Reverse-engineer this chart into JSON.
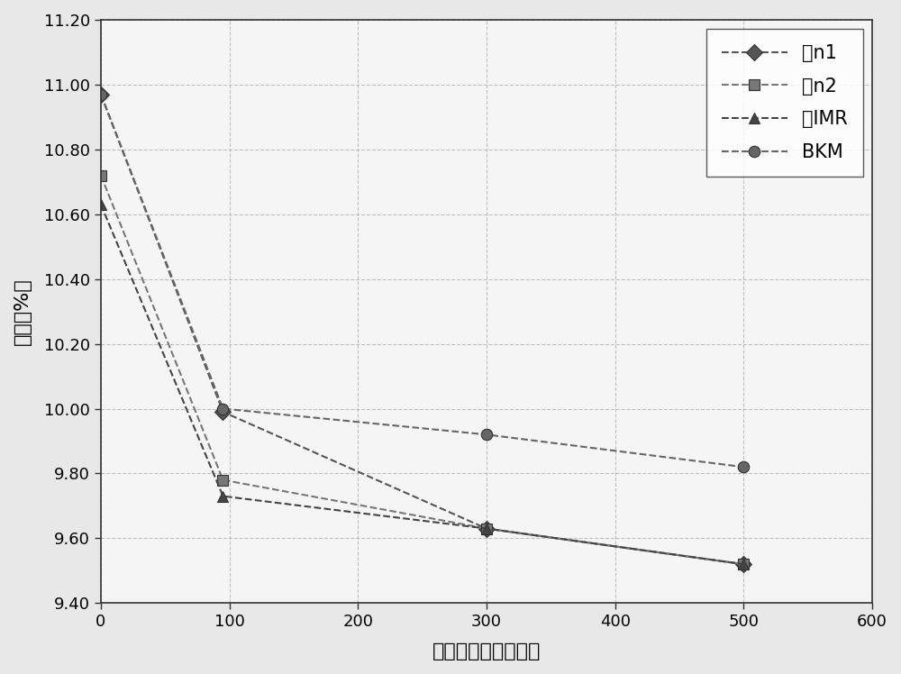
{
  "series": [
    {
      "label": "无n1",
      "x": [
        0,
        95,
        300,
        500
      ],
      "y": [
        10.97,
        9.99,
        9.63,
        9.52
      ],
      "marker": "D",
      "color": "#555555",
      "markersize": 9,
      "linewidth": 1.5,
      "linestyle": "--"
    },
    {
      "label": "薄n2",
      "x": [
        0,
        95,
        300,
        500
      ],
      "y": [
        10.72,
        9.78,
        9.63,
        9.52
      ],
      "marker": "s",
      "color": "#777777",
      "markersize": 9,
      "linewidth": 1.5,
      "linestyle": "--"
    },
    {
      "label": "无IMR",
      "x": [
        0,
        95,
        300,
        500
      ],
      "y": [
        10.63,
        9.73,
        9.63,
        9.52
      ],
      "marker": "^",
      "color": "#444444",
      "markersize": 9,
      "linewidth": 1.5,
      "linestyle": "--"
    },
    {
      "label": "BKM",
      "x": [
        0,
        95,
        300,
        500
      ],
      "y": [
        10.97,
        10.0,
        9.92,
        9.82
      ],
      "marker": "o",
      "color": "#666666",
      "markersize": 9,
      "linewidth": 1.5,
      "linestyle": "--"
    }
  ],
  "xlabel": "光曝露时间（小时）",
  "ylabel": "效率（%）",
  "xlim": [
    0,
    600
  ],
  "ylim": [
    9.4,
    11.2
  ],
  "xticks": [
    0,
    100,
    200,
    300,
    400,
    500,
    600
  ],
  "yticks": [
    9.4,
    9.6,
    9.8,
    10.0,
    10.2,
    10.4,
    10.6,
    10.8,
    11.0,
    11.2
  ],
  "grid_color": "#aaaaaa",
  "grid_linestyle": "--",
  "grid_alpha": 0.7,
  "background_color": "#f0f0f0",
  "legend_loc": "upper right",
  "fig_width": 10.0,
  "fig_height": 7.48
}
